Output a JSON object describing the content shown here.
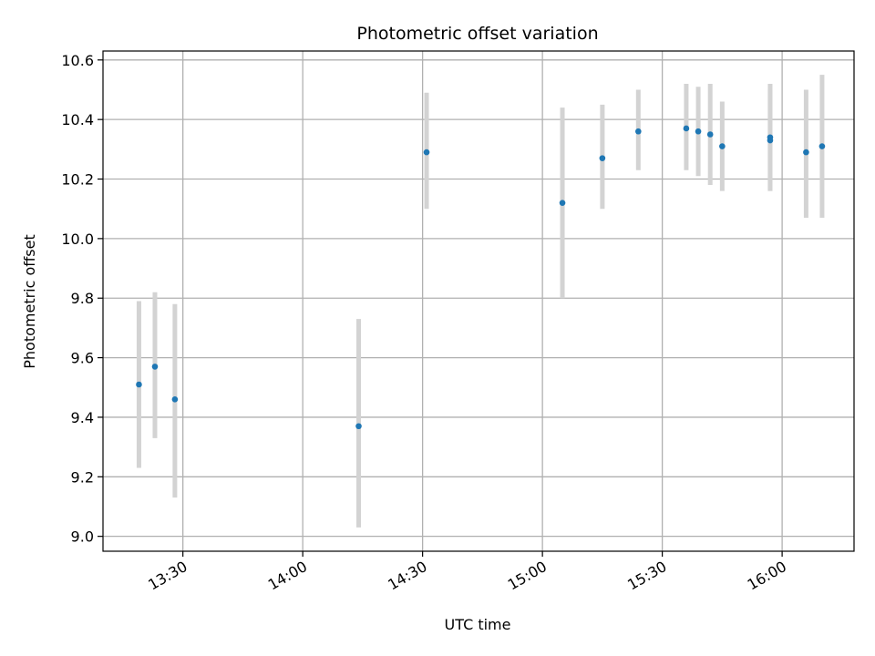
{
  "chart_data": {
    "type": "scatter",
    "title": "Photometric offset variation",
    "xlabel": "UTC time",
    "ylabel": "Photometric offset",
    "xlim": [
      "13:10",
      "16:18"
    ],
    "ylim": [
      8.95,
      10.63
    ],
    "x_ticks": [
      "13:30",
      "14:00",
      "14:30",
      "15:00",
      "15:30",
      "16:00"
    ],
    "y_ticks": [
      9.0,
      9.2,
      9.4,
      9.6,
      9.8,
      10.0,
      10.2,
      10.4,
      10.6
    ],
    "grid": true,
    "colors": {
      "points": "#1f77b4",
      "error_bars": "#d3d3d3",
      "grid": "#b0b0b0"
    },
    "points": [
      {
        "x": "13:19",
        "y": 9.51,
        "err_low": 9.23,
        "err_high": 9.79
      },
      {
        "x": "13:23",
        "y": 9.57,
        "err_low": 9.33,
        "err_high": 9.82
      },
      {
        "x": "13:28",
        "y": 9.46,
        "err_low": 9.13,
        "err_high": 9.78
      },
      {
        "x": "14:14",
        "y": 9.37,
        "err_low": 9.03,
        "err_high": 9.73
      },
      {
        "x": "14:31",
        "y": 10.29,
        "err_low": 10.1,
        "err_high": 10.49
      },
      {
        "x": "15:05",
        "y": 10.12,
        "err_low": 9.8,
        "err_high": 10.44
      },
      {
        "x": "15:15",
        "y": 10.27,
        "err_low": 10.1,
        "err_high": 10.45
      },
      {
        "x": "15:24",
        "y": 10.36,
        "err_low": 10.23,
        "err_high": 10.5
      },
      {
        "x": "15:36",
        "y": 10.37,
        "err_low": 10.23,
        "err_high": 10.52
      },
      {
        "x": "15:39",
        "y": 10.36,
        "err_low": 10.21,
        "err_high": 10.51
      },
      {
        "x": "15:42",
        "y": 10.35,
        "err_low": 10.18,
        "err_high": 10.52
      },
      {
        "x": "15:45",
        "y": 10.31,
        "err_low": 10.16,
        "err_high": 10.46
      },
      {
        "x": "15:57",
        "y": 10.34,
        "err_low": 10.16,
        "err_high": 10.52
      },
      {
        "x": "15:57",
        "y": 10.33,
        "err_low": 10.16,
        "err_high": 10.5
      },
      {
        "x": "16:06",
        "y": 10.29,
        "err_low": 10.07,
        "err_high": 10.5
      },
      {
        "x": "16:10",
        "y": 10.31,
        "err_low": 10.07,
        "err_high": 10.55
      }
    ]
  }
}
